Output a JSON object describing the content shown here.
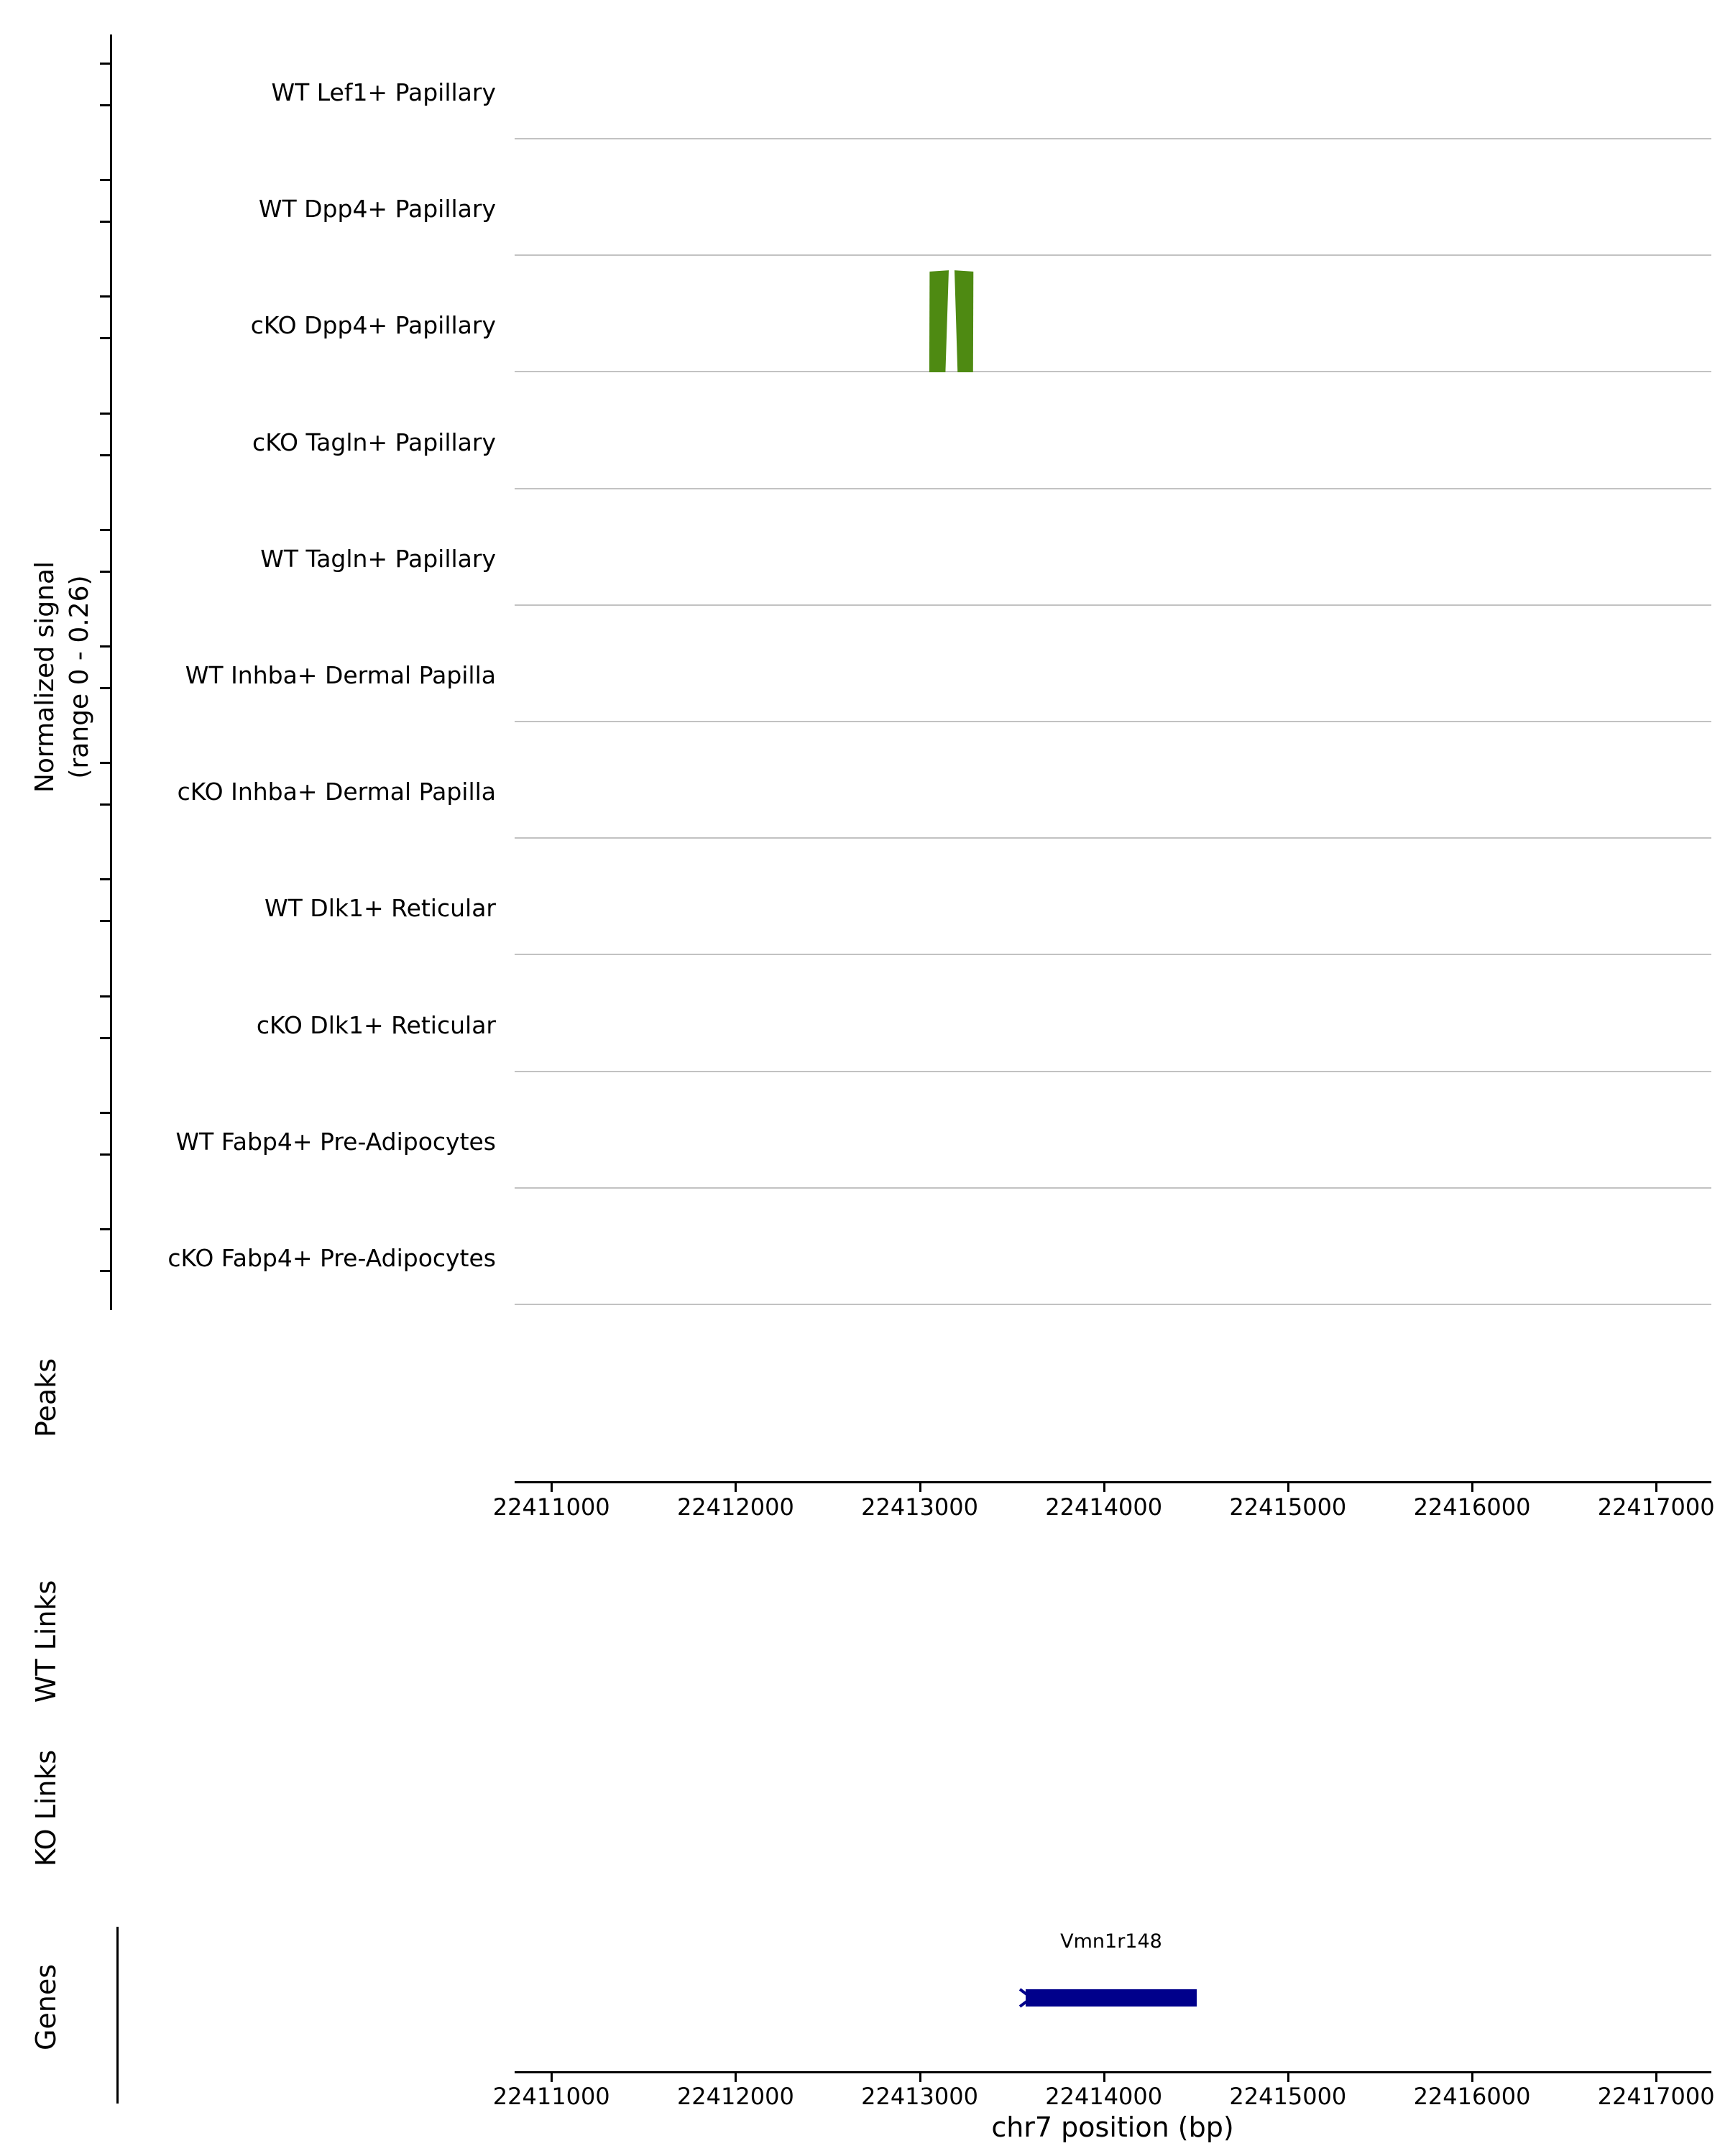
{
  "figure": {
    "y_axis_label_line1": "Normalized signal",
    "y_axis_label_line2": "(range 0 - 0.26)",
    "sections": {
      "peaks": "Peaks",
      "wt_links": "WT Links",
      "ko_links": "KO Links",
      "genes": "Genes"
    },
    "x_axis_label": "chr7 position (bp)"
  },
  "chart_data": {
    "type": "area",
    "title": "",
    "xlabel": "chr7 position (bp)",
    "ylabel": "Normalized signal (range 0 - 0.26)",
    "x_axis": {
      "min": 22410800,
      "max": 22417300,
      "ticks": [
        22411000,
        22412000,
        22413000,
        22414000,
        22415000,
        22416000,
        22417000
      ]
    },
    "track_y_range": [
      0,
      0.26
    ],
    "signal_color": "#4e8a12",
    "baseline_color": "#c2c2c2",
    "gene_color": "#00008b",
    "tracks": [
      {
        "name": "WT Lef1+ Papillary",
        "signal_polygons": []
      },
      {
        "name": "WT Dpp4+ Papillary",
        "signal_polygons": []
      },
      {
        "name": "cKO Dpp4+ Papillary",
        "signal_polygons": [
          [
            [
              22413052,
              0
            ],
            [
              22413054,
              0.235
            ],
            [
              22413158,
              0.238
            ],
            [
              22413140,
              0
            ]
          ],
          [
            [
              22413206,
              0
            ],
            [
              22413189,
              0.238
            ],
            [
              22413292,
              0.235
            ],
            [
              22413290,
              0
            ]
          ]
        ]
      },
      {
        "name": "cKO Tagln+ Papillary",
        "signal_polygons": []
      },
      {
        "name": "WT Tagln+ Papillary",
        "signal_polygons": []
      },
      {
        "name": "WT Inhba+ Dermal Papilla",
        "signal_polygons": []
      },
      {
        "name": "cKO Inhba+ Dermal Papilla",
        "signal_polygons": []
      },
      {
        "name": "WT Dlk1+ Reticular",
        "signal_polygons": []
      },
      {
        "name": "cKO Dlk1+ Reticular",
        "signal_polygons": []
      },
      {
        "name": "WT Fabp4+ Pre-Adipocytes",
        "signal_polygons": []
      },
      {
        "name": "cKO Fabp4+ Pre-Adipocytes",
        "signal_polygons": []
      }
    ],
    "track_order_note": "tracks listed top to bottom",
    "peaks": [],
    "wt_links": [],
    "ko_links": [],
    "genes": [
      {
        "name": "Vmn1r148",
        "start": 22413575,
        "end": 22414505,
        "strand": "+"
      }
    ]
  }
}
